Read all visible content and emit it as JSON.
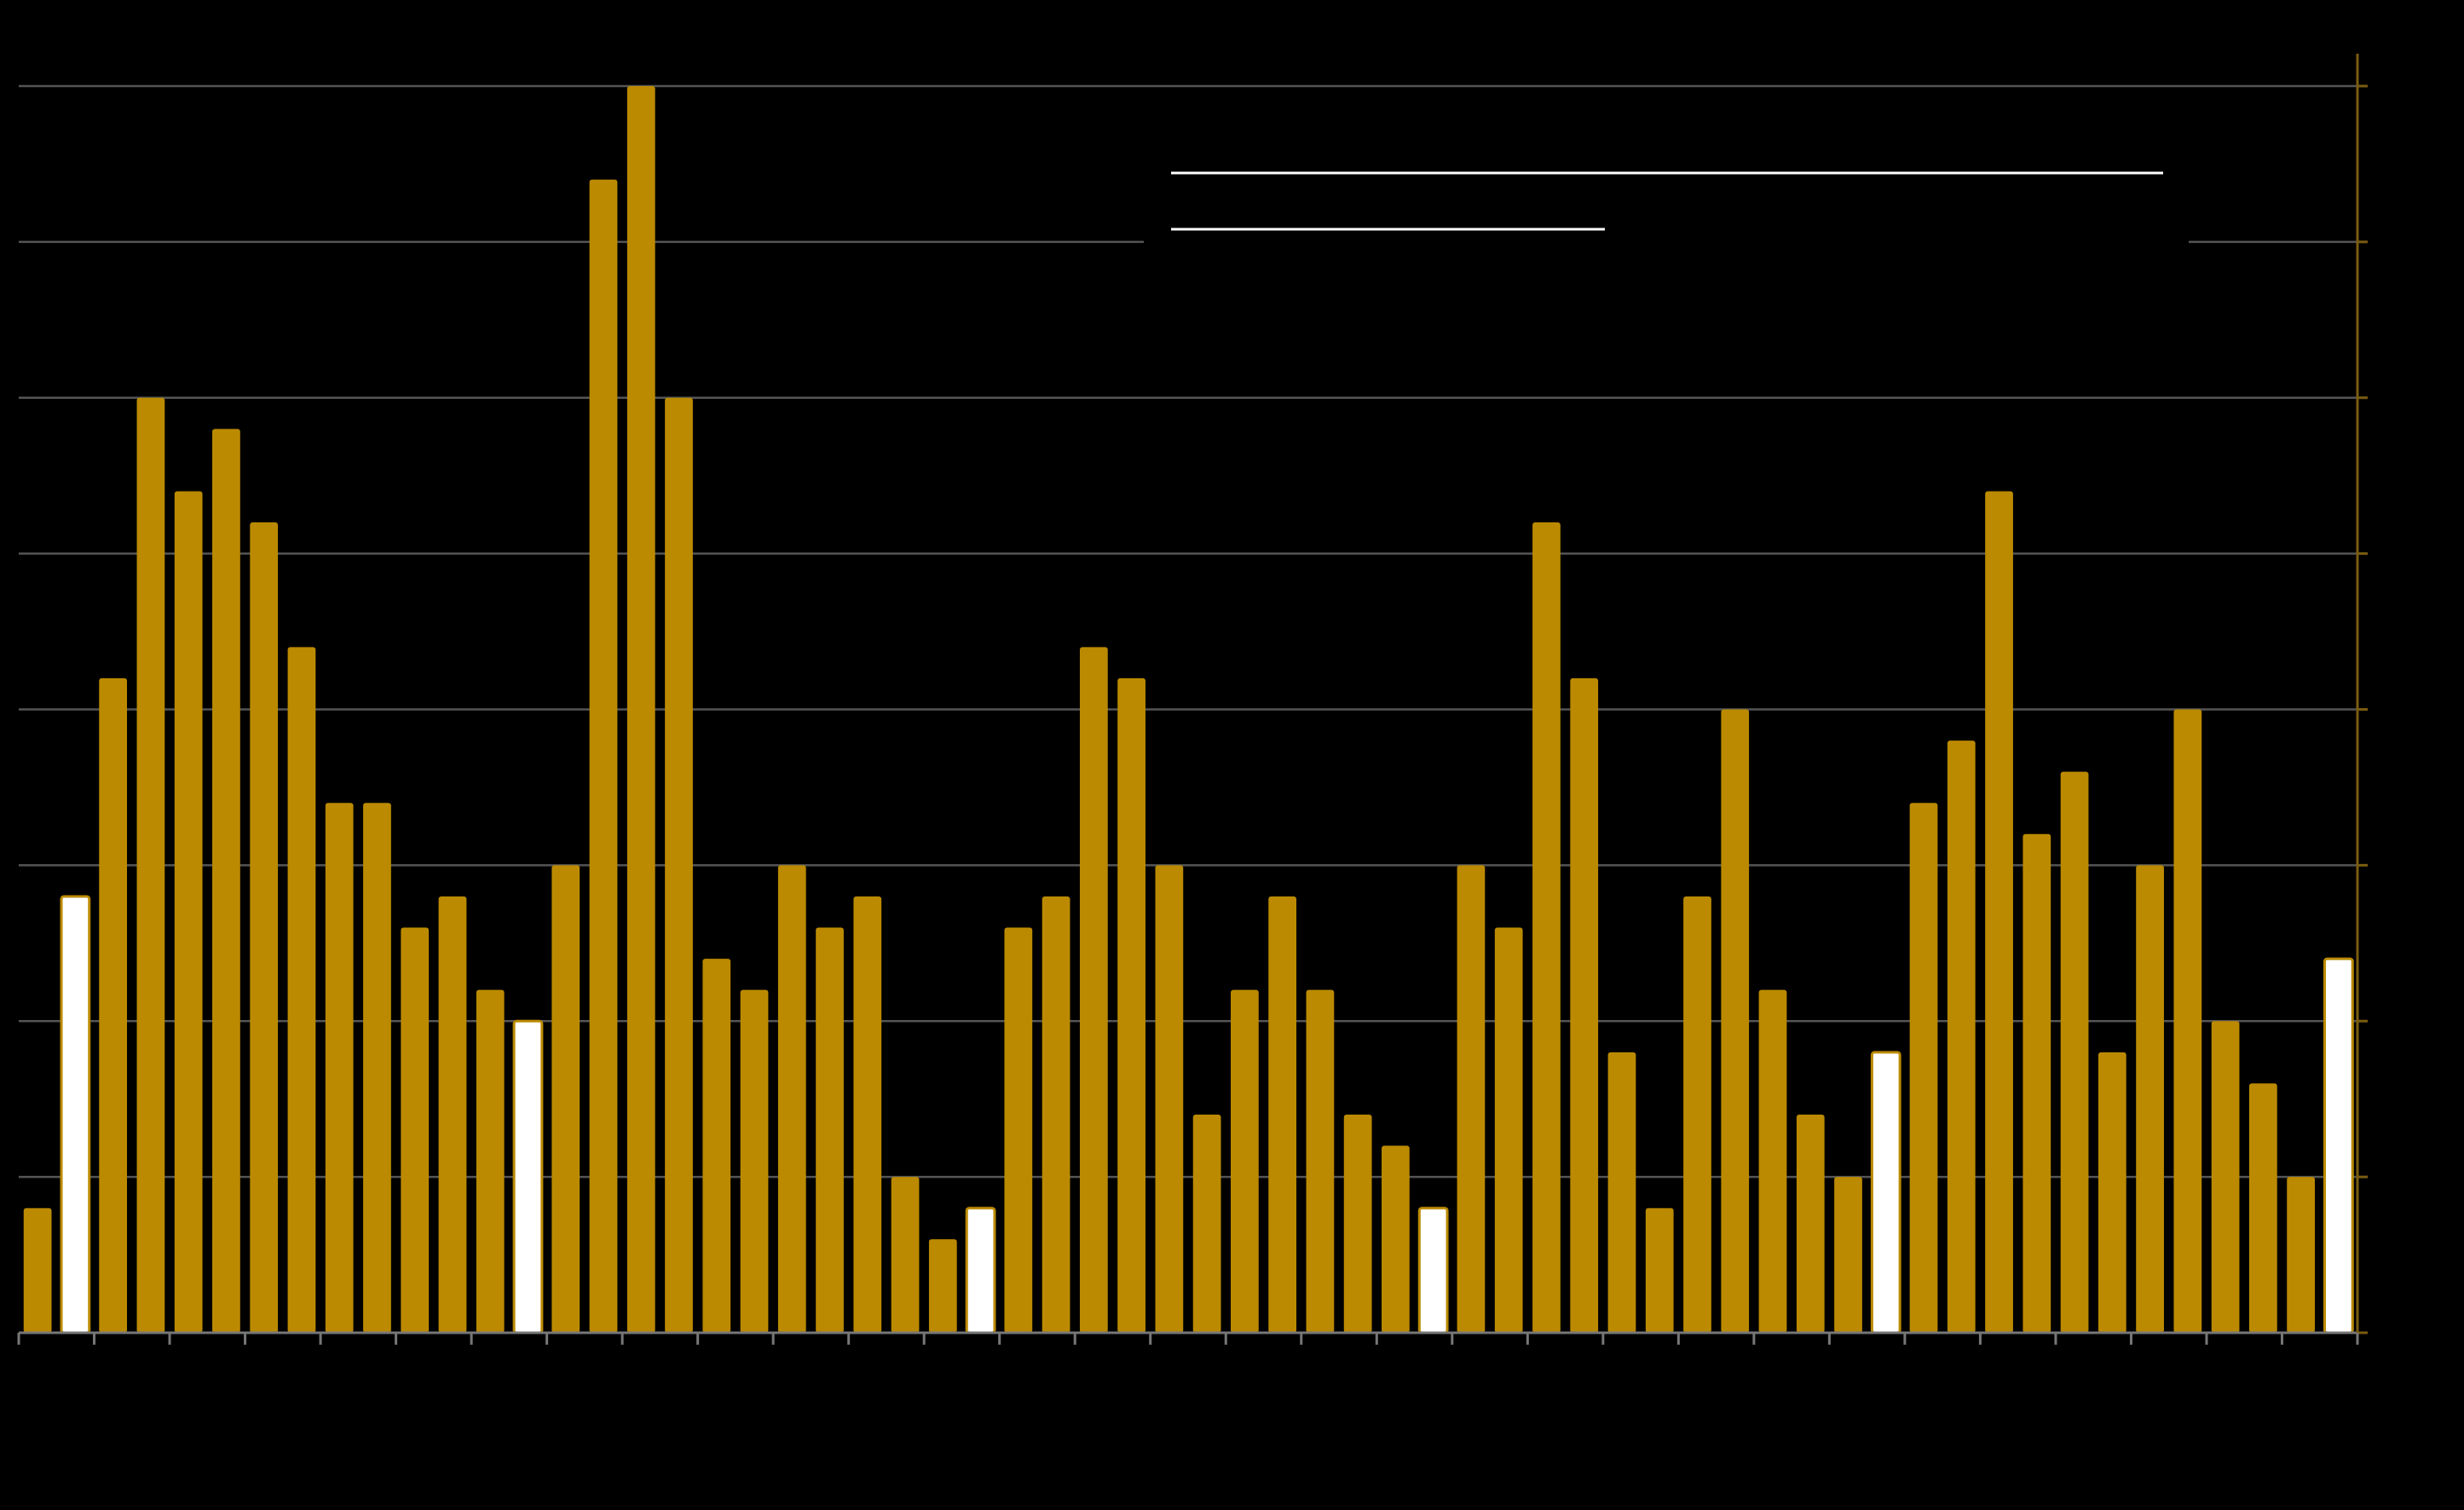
{
  "chart_data": {
    "type": "bar",
    "categories": [
      null,
      null,
      null,
      null,
      null,
      null,
      null,
      null,
      null,
      null,
      null,
      null,
      null,
      null,
      null,
      null,
      null,
      null,
      null,
      null,
      null,
      null,
      null,
      null,
      null,
      null,
      null,
      null,
      null,
      null,
      null,
      null,
      null,
      null,
      null,
      null,
      null,
      null,
      null,
      null,
      null,
      null,
      null,
      null,
      null,
      null,
      null,
      null,
      null,
      null,
      null,
      null,
      null,
      null,
      null,
      null,
      null,
      null,
      null,
      null,
      null,
      null
    ],
    "values": [
      4,
      14,
      21,
      30,
      27,
      29,
      26,
      22,
      17,
      17,
      13,
      14,
      11,
      10,
      15,
      37,
      40,
      30,
      12,
      11,
      15,
      13,
      14,
      5,
      3,
      4,
      13,
      14,
      22,
      21,
      15,
      7,
      11,
      14,
      11,
      7,
      6,
      4,
      15,
      13,
      26,
      21,
      9,
      4,
      14,
      20,
      11,
      7,
      5,
      9,
      17,
      19,
      27,
      16,
      18,
      9,
      15,
      20,
      10,
      8,
      5,
      12
    ],
    "colors": [
      "#bb8a00",
      "#ffffff",
      "#bb8a00",
      "#bb8a00",
      "#bb8a00",
      "#bb8a00",
      "#bb8a00",
      "#bb8a00",
      "#bb8a00",
      "#bb8a00",
      "#bb8a00",
      "#bb8a00",
      "#bb8a00",
      "#ffffff",
      "#bb8a00",
      "#bb8a00",
      "#bb8a00",
      "#bb8a00",
      "#bb8a00",
      "#bb8a00",
      "#bb8a00",
      "#bb8a00",
      "#bb8a00",
      "#bb8a00",
      "#bb8a00",
      "#ffffff",
      "#bb8a00",
      "#bb8a00",
      "#bb8a00",
      "#bb8a00",
      "#bb8a00",
      "#bb8a00",
      "#bb8a00",
      "#bb8a00",
      "#bb8a00",
      "#bb8a00",
      "#bb8a00",
      "#ffffff",
      "#bb8a00",
      "#bb8a00",
      "#bb8a00",
      "#bb8a00",
      "#bb8a00",
      "#bb8a00",
      "#bb8a00",
      "#bb8a00",
      "#bb8a00",
      "#bb8a00",
      "#bb8a00",
      "#ffffff",
      "#bb8a00",
      "#bb8a00",
      "#bb8a00",
      "#bb8a00",
      "#bb8a00",
      "#bb8a00",
      "#bb8a00",
      "#bb8a00",
      "#bb8a00",
      "#bb8a00",
      "#bb8a00",
      "#ffffff"
    ],
    "outline_color": "#bb8a00",
    "ylim": [
      0,
      40
    ],
    "yticks": [
      0,
      5,
      10,
      15,
      20,
      25,
      30,
      35,
      40
    ],
    "grid": true
  }
}
